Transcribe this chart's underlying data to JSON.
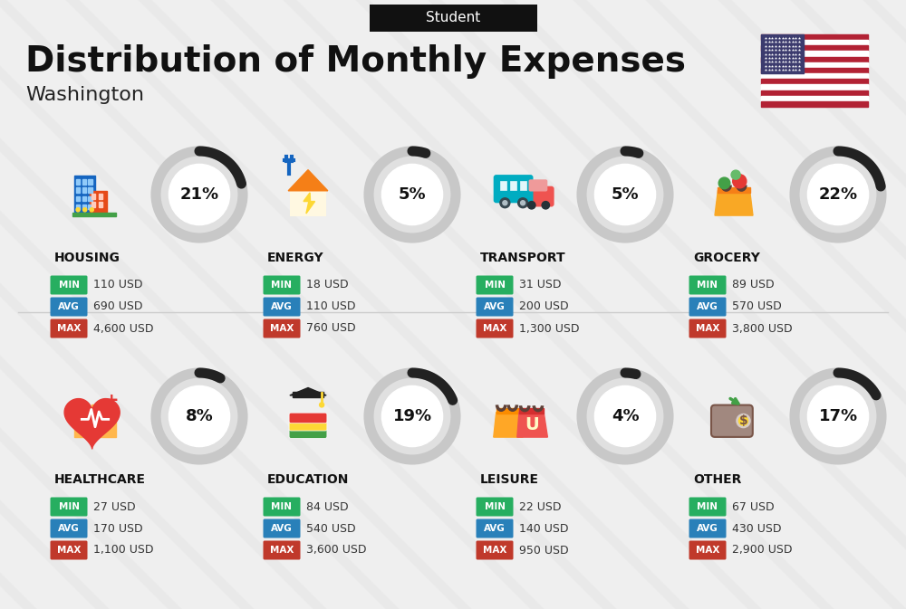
{
  "title": "Distribution of Monthly Expenses",
  "subtitle": "Washington",
  "header_label": "Student",
  "background_color": "#efefef",
  "categories": [
    {
      "name": "HOUSING",
      "percent": 21,
      "min": "110 USD",
      "avg": "690 USD",
      "max": "4,600 USD",
      "row": 0,
      "col": 0
    },
    {
      "name": "ENERGY",
      "percent": 5,
      "min": "18 USD",
      "avg": "110 USD",
      "max": "760 USD",
      "row": 0,
      "col": 1
    },
    {
      "name": "TRANSPORT",
      "percent": 5,
      "min": "31 USD",
      "avg": "200 USD",
      "max": "1,300 USD",
      "row": 0,
      "col": 2
    },
    {
      "name": "GROCERY",
      "percent": 22,
      "min": "89 USD",
      "avg": "570 USD",
      "max": "3,800 USD",
      "row": 0,
      "col": 3
    },
    {
      "name": "HEALTHCARE",
      "percent": 8,
      "min": "27 USD",
      "avg": "170 USD",
      "max": "1,100 USD",
      "row": 1,
      "col": 0
    },
    {
      "name": "EDUCATION",
      "percent": 19,
      "min": "84 USD",
      "avg": "540 USD",
      "max": "3,600 USD",
      "row": 1,
      "col": 1
    },
    {
      "name": "LEISURE",
      "percent": 4,
      "min": "22 USD",
      "avg": "140 USD",
      "max": "950 USD",
      "row": 1,
      "col": 2
    },
    {
      "name": "OTHER",
      "percent": 17,
      "min": "67 USD",
      "avg": "430 USD",
      "max": "2,900 USD",
      "row": 1,
      "col": 3
    }
  ],
  "min_color": "#27ae60",
  "avg_color": "#2980b9",
  "max_color": "#c0392b",
  "circle_bg": "#e0e0e0",
  "circle_arc_color": "#222222",
  "title_color": "#111111",
  "subtitle_color": "#222222",
  "category_name_color": "#111111",
  "value_text_color": "#333333",
  "header_bg": "#111111",
  "header_text_color": "#ffffff",
  "flag_red": "#B22234",
  "flag_blue": "#3C3B6E",
  "flag_white": "#FFFFFF",
  "shadow_color": "#cccccc"
}
